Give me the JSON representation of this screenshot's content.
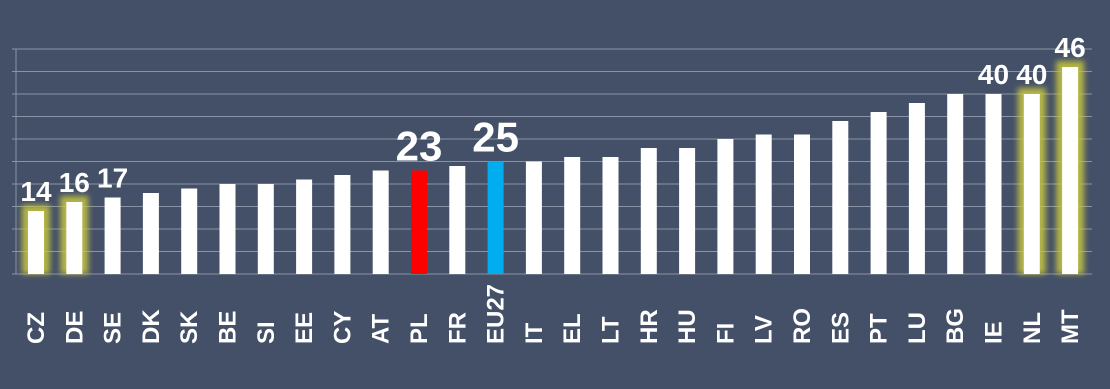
{
  "chart_data": {
    "type": "bar",
    "title": "",
    "xlabel": "",
    "ylabel": "",
    "grid": true,
    "ylim": [
      0,
      50
    ],
    "categories": [
      "CZ",
      "DE",
      "SE",
      "DK",
      "SK",
      "BE",
      "SI",
      "EE",
      "CY",
      "AT",
      "PL",
      "FR",
      "EU27",
      "IT",
      "EL",
      "LT",
      "HR",
      "HU",
      "FI",
      "LV",
      "RO",
      "ES",
      "PT",
      "LU",
      "BG",
      "IE",
      "NL",
      "MT"
    ],
    "values": [
      14,
      16,
      17,
      18,
      19,
      20,
      20,
      21,
      22,
      23,
      23,
      24,
      25,
      25,
      26,
      26,
      28,
      28,
      30,
      31,
      31,
      34,
      36,
      38,
      40,
      40,
      40,
      46
    ],
    "data_labels": [
      {
        "category": "CZ",
        "text": "14"
      },
      {
        "category": "DE",
        "text": "16"
      },
      {
        "category": "SE",
        "text": "17"
      },
      {
        "category": "PL",
        "text": "23"
      },
      {
        "category": "EU27",
        "text": "25"
      },
      {
        "category": "IE",
        "text": "40"
      },
      {
        "category": "NL",
        "text": "40"
      },
      {
        "category": "MT",
        "text": "46"
      }
    ],
    "highlighted": [
      "CZ",
      "DE",
      "NL",
      "MT"
    ],
    "colors": {
      "background": "#445068",
      "bar": "#FFFFFF",
      "highlight_glow": "#C8C840",
      "PL": "#FF0000",
      "EU27": "#00AEEF",
      "gridline": "#8A93A5",
      "text": "#FFFFFF"
    }
  }
}
